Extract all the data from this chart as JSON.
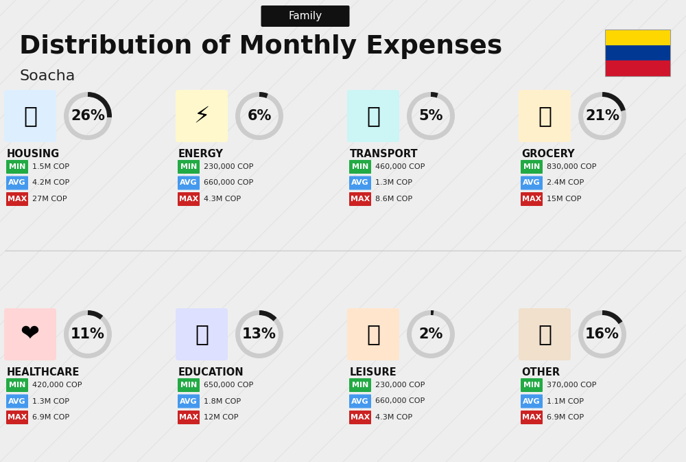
{
  "title": "Distribution of Monthly Expenses",
  "subtitle": "Soacha",
  "family_label": "Family",
  "bg_color": "#eeeeee",
  "categories": [
    {
      "name": "HOUSING",
      "pct": 26,
      "min": "1.5M COP",
      "avg": "4.2M COP",
      "max": "27M COP",
      "row": 0,
      "col": 0
    },
    {
      "name": "ENERGY",
      "pct": 6,
      "min": "230,000 COP",
      "avg": "660,000 COP",
      "max": "4.3M COP",
      "row": 0,
      "col": 1
    },
    {
      "name": "TRANSPORT",
      "pct": 5,
      "min": "460,000 COP",
      "avg": "1.3M COP",
      "max": "8.6M COP",
      "row": 0,
      "col": 2
    },
    {
      "name": "GROCERY",
      "pct": 21,
      "min": "830,000 COP",
      "avg": "2.4M COP",
      "max": "15M COP",
      "row": 0,
      "col": 3
    },
    {
      "name": "HEALTHCARE",
      "pct": 11,
      "min": "420,000 COP",
      "avg": "1.3M COP",
      "max": "6.9M COP",
      "row": 1,
      "col": 0
    },
    {
      "name": "EDUCATION",
      "pct": 13,
      "min": "650,000 COP",
      "avg": "1.8M COP",
      "max": "12M COP",
      "row": 1,
      "col": 1
    },
    {
      "name": "LEISURE",
      "pct": 2,
      "min": "230,000 COP",
      "avg": "660,000 COP",
      "max": "4.3M COP",
      "row": 1,
      "col": 2
    },
    {
      "name": "OTHER",
      "pct": 16,
      "min": "370,000 COP",
      "avg": "1.1M COP",
      "max": "6.9M COP",
      "row": 1,
      "col": 3
    }
  ],
  "stat_colors": [
    "#22aa44",
    "#4499ee",
    "#cc2222"
  ],
  "stat_labels": [
    "MIN",
    "AVG",
    "MAX"
  ],
  "flag_colors": [
    "#FFD700",
    "#003893",
    "#CF142B"
  ],
  "icon_emojis": {
    "HOUSING": "🏢",
    "ENERGY": "⚡",
    "TRANSPORT": "🚌",
    "GROCERY": "🛒",
    "HEALTHCARE": "❤️",
    "EDUCATION": "🎓",
    "LEISURE": "🛍",
    "OTHER": "👜"
  },
  "icon_bg_colors": {
    "HOUSING": "#ddeeff",
    "ENERGY": "#fff8cc",
    "TRANSPORT": "#ccf5f5",
    "GROCERY": "#fff0cc",
    "HEALTHCARE": "#ffd5d5",
    "EDUCATION": "#dde0ff",
    "LEISURE": "#ffe5cc",
    "OTHER": "#f0e0cc"
  }
}
